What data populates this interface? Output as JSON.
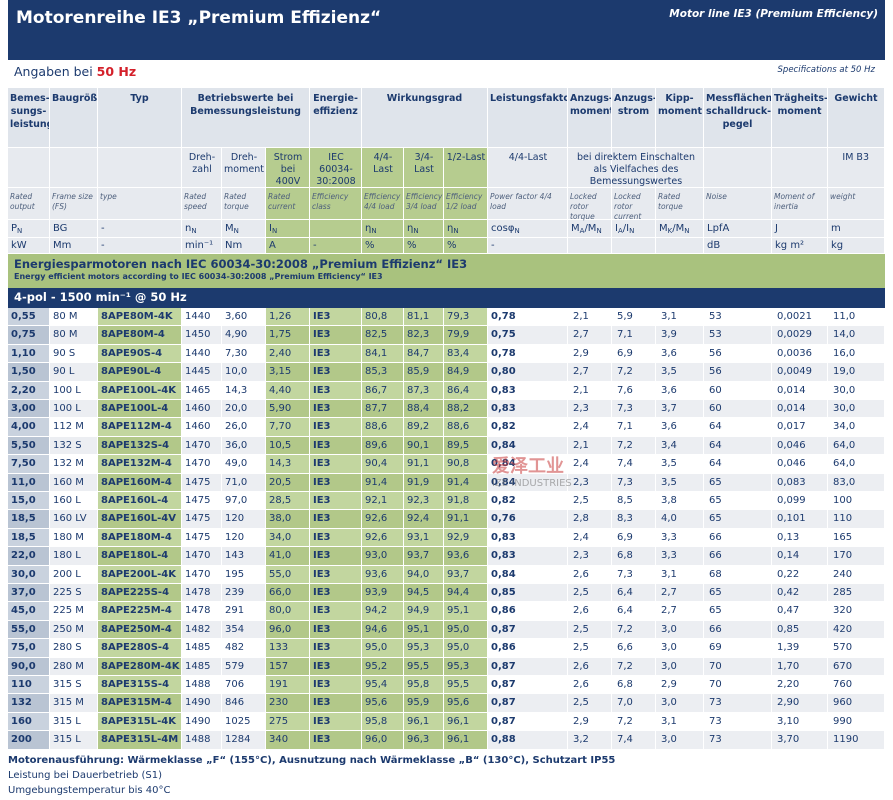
{
  "header": {
    "title": "Motorenreihe IE3 „Premium Effizienz“",
    "subtitle": "Motor line IE3 (Premium Efficiency)"
  },
  "spec": {
    "label": "Angaben bei",
    "value": "50 Hz",
    "english": "Specifications at 50 Hz"
  },
  "table": {
    "head_top": [
      "Bemes­sungs­leistung",
      "Baugröße",
      "Typ",
      "Betriebswerte bei Bemessungsleistung",
      "Energie­effizienz",
      "Wirkungsgrad",
      "Leistungsfaktor",
      "Anzugs­moment",
      "Anzugs­strom",
      "Kipp­moment",
      "Messflächen­schalldruck­pegel",
      "Trägheits­moment",
      "Gewicht"
    ],
    "head_sub": [
      "Dreh­zahl",
      "Dreh­moment",
      "Strom bei 400V",
      "IEC 60034-30:2008",
      "4/4-Last",
      "3/4-Last",
      "1/2-Last",
      "4/4-Last",
      "bei direktem Einschalten als Vielfaches des Bemessungswertes",
      "IM B3"
    ],
    "english": [
      "Rated output",
      "Frame size (FS)",
      "type",
      "Rated speed",
      "Rated torque",
      "Rated current",
      "Efficiency class",
      "Efficiency 4/4 load",
      "Efficiency 3/4 load",
      "Efficiency 1/2 load",
      "Power factor 4/4 load",
      "Locked rotor torque",
      "Locked rotor current",
      "Rated torque",
      "Noise",
      "Moment of inertia",
      "weight"
    ],
    "symbols": [
      [
        "P",
        "N"
      ],
      [
        "BG"
      ],
      [
        "-"
      ],
      [
        "n",
        "N"
      ],
      [
        "M",
        "N"
      ],
      [
        "I",
        "N"
      ],
      null,
      [
        "η",
        "N"
      ],
      [
        "η",
        "N"
      ],
      [
        "η",
        "N"
      ],
      [
        "cosφ",
        "N"
      ],
      [
        "M",
        "A",
        "/M",
        "N"
      ],
      [
        "I",
        "A",
        "/I",
        "N"
      ],
      [
        "M",
        "K",
        "/M",
        "N"
      ],
      [
        "LpfA"
      ],
      [
        "J"
      ],
      [
        "m"
      ]
    ],
    "units": [
      "kW",
      "Mm",
      "-",
      "min⁻¹",
      "Nm",
      "A",
      "-",
      "%",
      "%",
      "%",
      "-",
      null,
      null,
      null,
      "dB",
      "kg m²",
      "kg"
    ],
    "section_title": "Energiesparmotoren nach IEC 60034-30:2008 „Premium Effizienz“ IE3",
    "section_subtitle": "Energy efficient motors according to IEC 60034-30:2008 „Premium Efficiency“ IE3",
    "group": "4-pol - 1500 min⁻¹ @ 50 Hz",
    "rows": [
      [
        "0,55",
        "80 M",
        "8APE80M-4K",
        "1440",
        "3,60",
        "1,26",
        "IE3",
        "80,8",
        "81,1",
        "79,3",
        "0,78",
        "2,1",
        "5,9",
        "3,1",
        "53",
        "0,0021",
        "11,0"
      ],
      [
        "0,75",
        "80 M",
        "8APE80M-4",
        "1450",
        "4,90",
        "1,75",
        "IE3",
        "82,5",
        "82,3",
        "79,9",
        "0,75",
        "2,7",
        "7,1",
        "3,9",
        "53",
        "0,0029",
        "14,0"
      ],
      [
        "1,10",
        "90 S",
        "8APE90S-4",
        "1440",
        "7,30",
        "2,40",
        "IE3",
        "84,1",
        "84,7",
        "83,4",
        "0,78",
        "2,9",
        "6,9",
        "3,6",
        "56",
        "0,0036",
        "16,0"
      ],
      [
        "1,50",
        "90 L",
        "8APE90L-4",
        "1445",
        "10,0",
        "3,15",
        "IE3",
        "85,3",
        "85,9",
        "84,9",
        "0,80",
        "2,7",
        "7,2",
        "3,5",
        "56",
        "0,0049",
        "19,0"
      ],
      [
        "2,20",
        "100 L",
        "8APE100L-4K",
        "1465",
        "14,3",
        "4,40",
        "IE3",
        "86,7",
        "87,3",
        "86,4",
        "0,83",
        "2,1",
        "7,6",
        "3,6",
        "60",
        "0,014",
        "30,0"
      ],
      [
        "3,00",
        "100 L",
        "8APE100L-4",
        "1460",
        "20,0",
        "5,90",
        "IE3",
        "87,7",
        "88,4",
        "88,2",
        "0,83",
        "2,3",
        "7,3",
        "3,7",
        "60",
        "0,014",
        "30,0"
      ],
      [
        "4,00",
        "112 M",
        "8APE112M-4",
        "1460",
        "26,0",
        "7,70",
        "IE3",
        "88,6",
        "89,2",
        "88,6",
        "0,82",
        "2,4",
        "7,1",
        "3,6",
        "64",
        "0,017",
        "34,0"
      ],
      [
        "5,50",
        "132 S",
        "8APE132S-4",
        "1470",
        "36,0",
        "10,5",
        "IE3",
        "89,6",
        "90,1",
        "89,5",
        "0,84",
        "2,1",
        "7,2",
        "3,4",
        "64",
        "0,046",
        "64,0"
      ],
      [
        "7,50",
        "132 M",
        "8APE132M-4",
        "1470",
        "49,0",
        "14,3",
        "IE3",
        "90,4",
        "91,1",
        "90,8",
        "0,84",
        "2,4",
        "7,4",
        "3,5",
        "64",
        "0,046",
        "64,0"
      ],
      [
        "11,0",
        "160 M",
        "8APE160M-4",
        "1475",
        "71,0",
        "20,5",
        "IE3",
        "91,4",
        "91,9",
        "91,4",
        "0,84",
        "2,3",
        "7,3",
        "3,5",
        "65",
        "0,083",
        "83,0"
      ],
      [
        "15,0",
        "160 L",
        "8APE160L-4",
        "1475",
        "97,0",
        "28,5",
        "IE3",
        "92,1",
        "92,3",
        "91,8",
        "0,82",
        "2,5",
        "8,5",
        "3,8",
        "65",
        "0,099",
        "100"
      ],
      [
        "18,5",
        "160 LV",
        "8APE160L-4V",
        "1475",
        "120",
        "38,0",
        "IE3",
        "92,6",
        "92,4",
        "91,1",
        "0,76",
        "2,8",
        "8,3",
        "4,0",
        "65",
        "0,101",
        "110"
      ],
      [
        "18,5",
        "180 M",
        "8APE180M-4",
        "1475",
        "120",
        "34,0",
        "IE3",
        "92,6",
        "93,1",
        "92,9",
        "0,83",
        "2,4",
        "6,9",
        "3,3",
        "66",
        "0,13",
        "165"
      ],
      [
        "22,0",
        "180 L",
        "8APE180L-4",
        "1470",
        "143",
        "41,0",
        "IE3",
        "93,0",
        "93,7",
        "93,6",
        "0,83",
        "2,3",
        "6,8",
        "3,3",
        "66",
        "0,14",
        "170"
      ],
      [
        "30,0",
        "200 L",
        "8APE200L-4K",
        "1470",
        "195",
        "55,0",
        "IE3",
        "93,6",
        "94,0",
        "93,7",
        "0,84",
        "2,6",
        "7,3",
        "3,1",
        "68",
        "0,22",
        "240"
      ],
      [
        "37,0",
        "225 S",
        "8APE225S-4",
        "1478",
        "239",
        "66,0",
        "IE3",
        "93,9",
        "94,5",
        "94,4",
        "0,85",
        "2,5",
        "6,4",
        "2,7",
        "65",
        "0,42",
        "285"
      ],
      [
        "45,0",
        "225 M",
        "8APE225M-4",
        "1478",
        "291",
        "80,0",
        "IE3",
        "94,2",
        "94,9",
        "95,1",
        "0,86",
        "2,6",
        "6,4",
        "2,7",
        "65",
        "0,47",
        "320"
      ],
      [
        "55,0",
        "250 M",
        "8APE250M-4",
        "1482",
        "354",
        "96,0",
        "IE3",
        "94,6",
        "95,1",
        "95,0",
        "0,87",
        "2,5",
        "7,2",
        "3,0",
        "66",
        "0,85",
        "420"
      ],
      [
        "75,0",
        "280 S",
        "8APE280S-4",
        "1485",
        "482",
        "133",
        "IE3",
        "95,0",
        "95,3",
        "95,0",
        "0,86",
        "2,5",
        "6,6",
        "3,0",
        "69",
        "1,39",
        "570"
      ],
      [
        "90,0",
        "280 M",
        "8APE280M-4K",
        "1485",
        "579",
        "157",
        "IE3",
        "95,2",
        "95,5",
        "95,3",
        "0,87",
        "2,6",
        "7,2",
        "3,0",
        "70",
        "1,70",
        "670"
      ],
      [
        "110",
        "315 S",
        "8APE315S-4",
        "1488",
        "706",
        "191",
        "IE3",
        "95,4",
        "95,8",
        "95,5",
        "0,87",
        "2,6",
        "6,8",
        "2,9",
        "70",
        "2,20",
        "760"
      ],
      [
        "132",
        "315 M",
        "8APE315M-4",
        "1490",
        "846",
        "230",
        "IE3",
        "95,6",
        "95,9",
        "95,6",
        "0,87",
        "2,5",
        "7,0",
        "3,0",
        "73",
        "2,90",
        "960"
      ],
      [
        "160",
        "315 L",
        "8APE315L-4K",
        "1490",
        "1025",
        "275",
        "IE3",
        "95,8",
        "96,1",
        "96,1",
        "0,87",
        "2,9",
        "7,2",
        "3,1",
        "73",
        "3,10",
        "990"
      ],
      [
        "200",
        "315 L",
        "8APE315L-4M",
        "1488",
        "1284",
        "340",
        "IE3",
        "96,0",
        "96,3",
        "96,1",
        "0,88",
        "3,2",
        "7,4",
        "3,0",
        "73",
        "3,70",
        "1190"
      ]
    ]
  },
  "footer": {
    "lines": [
      "Motorenausführung: Wärmeklasse „F“ (155°C), Ausnutzung nach Wärmeklasse „B“ (130°C), Schutzart IP55",
      "Leistung bei Dauerbetrieb (S1)",
      "Umgebungstemperatur bis 40°C"
    ]
  },
  "watermark": {
    "text": "爱泽工业",
    "subtext": "IZE INDUSTRIES"
  }
}
